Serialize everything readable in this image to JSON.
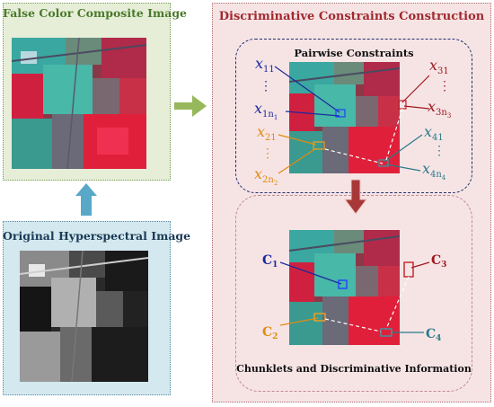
{
  "panels": {
    "false_color": {
      "title": "False Color Composite Image"
    },
    "original": {
      "title": "Original Hyperspectral Image"
    },
    "discriminative": {
      "title": "Discriminative Constraints Construction"
    }
  },
  "groups": {
    "pairwise": {
      "title": "Pairwise Constraints"
    },
    "chunklets": {
      "title": "Chunklets and Discriminative Information"
    }
  },
  "pairwise_labels": {
    "x11": {
      "base": "x",
      "sub": "11"
    },
    "dots_blue": "⋮",
    "x1n1": {
      "base": "x",
      "sub": "1n",
      "subsub": "1"
    },
    "x21": {
      "base": "x",
      "sub": "21"
    },
    "dots_orange": "⋮",
    "x2n2": {
      "base": "x",
      "sub": "2n",
      "subsub": "2"
    },
    "x31": {
      "base": "x",
      "sub": "31"
    },
    "dots_red": "⋮",
    "x3n3": {
      "base": "x",
      "sub": "3n",
      "subsub": "3"
    },
    "x41": {
      "base": "x",
      "sub": "41"
    },
    "dots_teal": "⋮",
    "x4n4": {
      "base": "x",
      "sub": "4n",
      "subsub": "4"
    }
  },
  "chunk_labels": {
    "c1": {
      "base": "C",
      "sub": "1"
    },
    "c2": {
      "base": "C",
      "sub": "2"
    },
    "c3": {
      "base": "C",
      "sub": "3"
    },
    "c4": {
      "base": "C",
      "sub": "4"
    }
  },
  "colors": {
    "blue": "#1c2a9c",
    "orange": "#e08a10",
    "red": "#a0181e",
    "teal": "#2a7a88",
    "arrow_green": "#96b85a",
    "arrow_blue": "#5aa8c8",
    "arrow_red": "#a83838"
  },
  "icons": [
    "right-arrow-icon",
    "up-arrow-icon",
    "down-arrow-icon"
  ]
}
